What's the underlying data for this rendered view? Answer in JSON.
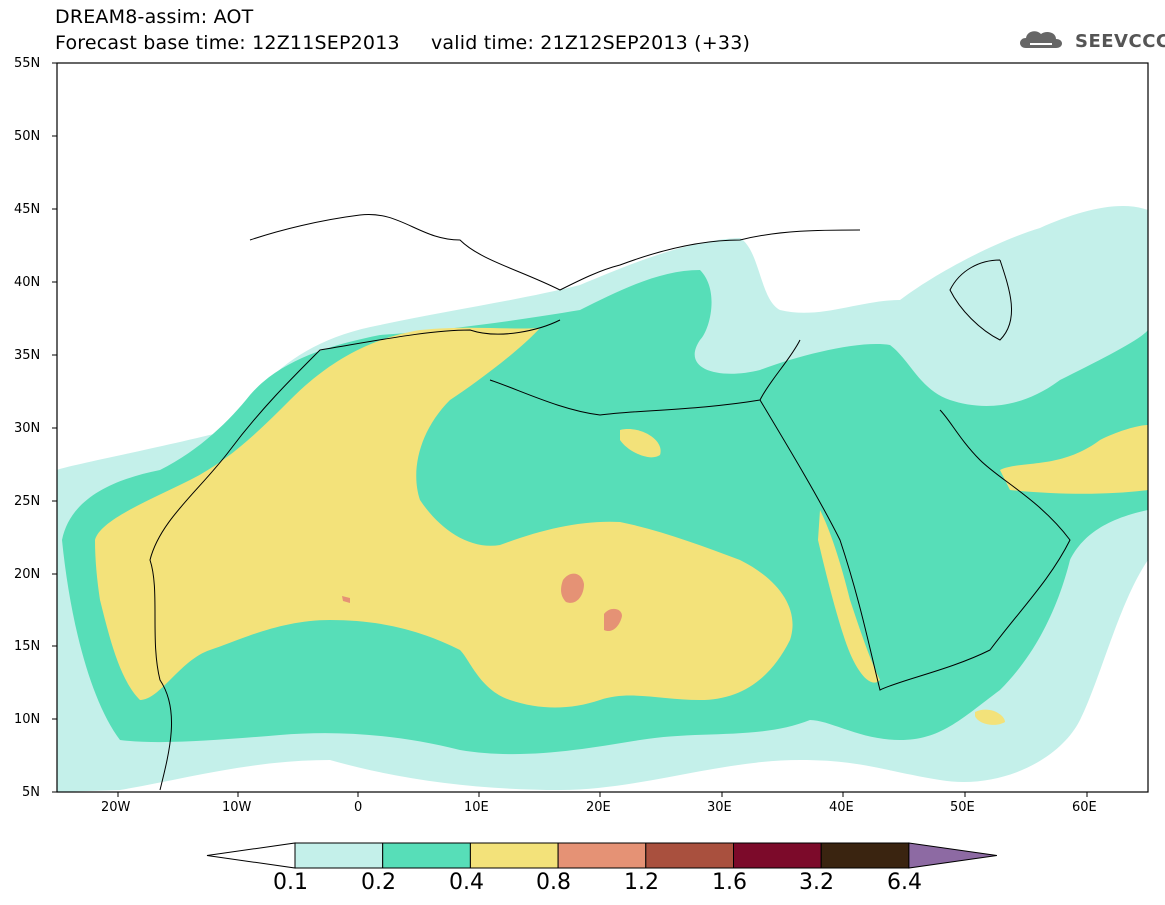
{
  "header": {
    "title": "DREAM8-assim: AOT",
    "subtitle": "Forecast base time: 12Z11SEP2013     valid time: 21Z12SEP2013 (+33)"
  },
  "logo": {
    "text": "SEEVCCC",
    "icon": "cloud-logo-icon"
  },
  "map": {
    "region": "North Africa, Europe and Middle East",
    "lon_range": [
      -25,
      65
    ],
    "lat_range": [
      5,
      55
    ],
    "lat_labels": [
      "55N",
      "50N",
      "45N",
      "40N",
      "35N",
      "30N",
      "25N",
      "20N",
      "15N",
      "10N",
      "5N"
    ],
    "lon_labels": [
      "20W",
      "10W",
      "0",
      "10E",
      "20E",
      "30E",
      "40E",
      "50E",
      "60E"
    ]
  },
  "colorbar": {
    "levels": [
      "0.1",
      "0.2",
      "0.4",
      "0.8",
      "1.2",
      "1.6",
      "3.2",
      "6.4"
    ],
    "colors": [
      "#ffffff",
      "#c4f0ea",
      "#57deb8",
      "#f3e27a",
      "#e59275",
      "#a9503e",
      "#7c0a2a",
      "#3a2410",
      "#8d6aa3"
    ]
  }
}
